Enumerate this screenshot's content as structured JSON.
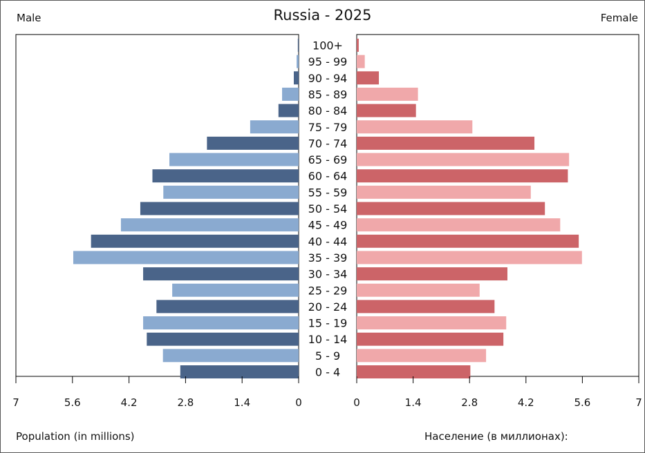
{
  "chart_data": {
    "type": "bar",
    "title": "Russia - 2025",
    "left_label": "Male",
    "right_label": "Female",
    "xlabel_left": "Population (in millions)",
    "xlabel_right": "Население (в миллионах):",
    "xlim": [
      0,
      7
    ],
    "x_ticks_left": [
      "7",
      "5.6",
      "4.2",
      "2.8",
      "1.4",
      "0"
    ],
    "x_ticks_right": [
      "0",
      "1.4",
      "2.8",
      "4.2",
      "5.6",
      "7"
    ],
    "categories": [
      "100+",
      "95 - 99",
      "90 - 94",
      "85 - 89",
      "80 - 84",
      "75 - 79",
      "70 - 74",
      "65 - 69",
      "60 - 64",
      "55 - 59",
      "50 - 54",
      "45 - 49",
      "40 - 44",
      "35 - 39",
      "30 - 34",
      "25 - 29",
      "20 - 24",
      "15 - 19",
      "10 - 14",
      "5 - 9",
      "0 - 4"
    ],
    "series": [
      {
        "name": "Male",
        "values": [
          0.02,
          0.05,
          0.12,
          0.41,
          0.5,
          1.2,
          2.27,
          3.2,
          3.62,
          3.35,
          3.92,
          4.4,
          5.14,
          5.58,
          3.85,
          3.13,
          3.52,
          3.85,
          3.76,
          3.36,
          2.93
        ]
      },
      {
        "name": "Female",
        "values": [
          0.05,
          0.2,
          0.55,
          1.52,
          1.47,
          2.87,
          4.41,
          5.27,
          5.24,
          4.32,
          4.67,
          5.05,
          5.51,
          5.59,
          3.74,
          3.05,
          3.42,
          3.71,
          3.64,
          3.21,
          2.82
        ]
      }
    ],
    "colors": {
      "male_dark": "#4a6489",
      "male_light": "#8aaad0",
      "female_dark": "#cc6468",
      "female_light": "#f0a8aa",
      "axis": "#000000"
    }
  }
}
